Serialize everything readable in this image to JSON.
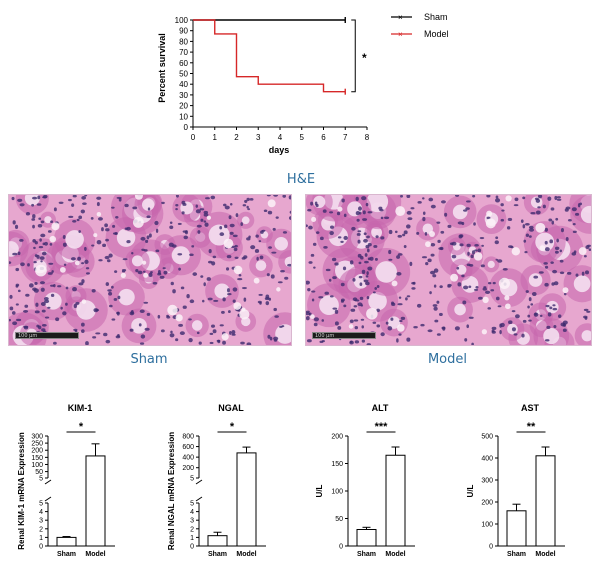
{
  "survival": {
    "ylabel": "Percent survival",
    "xlabel": "days",
    "yticks": [
      "0",
      "10",
      "20",
      "30",
      "40",
      "50",
      "60",
      "70",
      "80",
      "90",
      "100"
    ],
    "xticks": [
      "0",
      "1",
      "2",
      "3",
      "4",
      "5",
      "6",
      "7",
      "8"
    ],
    "legend": [
      {
        "name": "Sham",
        "color": "#000000"
      },
      {
        "name": "Model",
        "color": "#d62728"
      }
    ],
    "significance": "*"
  },
  "histology": {
    "title": "H&E",
    "scale_bar": "100 µm",
    "captions": [
      "Sham",
      "Model"
    ]
  },
  "chart_data": [
    {
      "type": "line",
      "title": "",
      "xlabel": "days",
      "ylabel": "Percent survival",
      "xlim": [
        0,
        8
      ],
      "ylim": [
        0,
        100
      ],
      "series": [
        {
          "name": "Sham",
          "x": [
            0,
            7
          ],
          "y": [
            100,
            100
          ],
          "step": true
        },
        {
          "name": "Model",
          "x": [
            0,
            1,
            2,
            3,
            6,
            7
          ],
          "y": [
            100,
            87,
            47,
            40,
            33,
            33
          ],
          "step": true
        }
      ],
      "annotation": "*"
    },
    {
      "type": "bar",
      "title": "KIM-1",
      "ylabel": "Renal KIM-1 mRNA Expression",
      "categories": [
        "Sham",
        "Model"
      ],
      "values": [
        1,
        160
      ],
      "errors": [
        0.1,
        85
      ],
      "significance": "*",
      "broken_axis": true,
      "lower_ticks": [
        "0",
        "1",
        "2",
        "3",
        "4",
        "5"
      ],
      "upper_ticks": [
        "5",
        "50",
        "100",
        "150",
        "200",
        "250",
        "300"
      ]
    },
    {
      "type": "bar",
      "title": "NGAL",
      "ylabel": "Renal NGAL mRNA Expression",
      "categories": [
        "Sham",
        "Model"
      ],
      "values": [
        1.2,
        480
      ],
      "errors": [
        0.4,
        110
      ],
      "significance": "*",
      "broken_axis": true,
      "lower_ticks": [
        "0",
        "1",
        "2",
        "3",
        "4",
        "5"
      ],
      "upper_ticks": [
        "5",
        "200",
        "400",
        "600",
        "800"
      ]
    },
    {
      "type": "bar",
      "title": "ALT",
      "ylabel": "U/L",
      "categories": [
        "Sham",
        "Model"
      ],
      "values": [
        30,
        165
      ],
      "errors": [
        4,
        15
      ],
      "significance": "***",
      "ylim": [
        0,
        200
      ],
      "yticks": [
        "0",
        "50",
        "100",
        "150",
        "200"
      ]
    },
    {
      "type": "bar",
      "title": "AST",
      "ylabel": "U/L",
      "categories": [
        "Sham",
        "Model"
      ],
      "values": [
        160,
        410
      ],
      "errors": [
        30,
        40
      ],
      "significance": "**",
      "ylim": [
        0,
        500
      ],
      "yticks": [
        "0",
        "100",
        "200",
        "300",
        "400",
        "500"
      ]
    }
  ]
}
